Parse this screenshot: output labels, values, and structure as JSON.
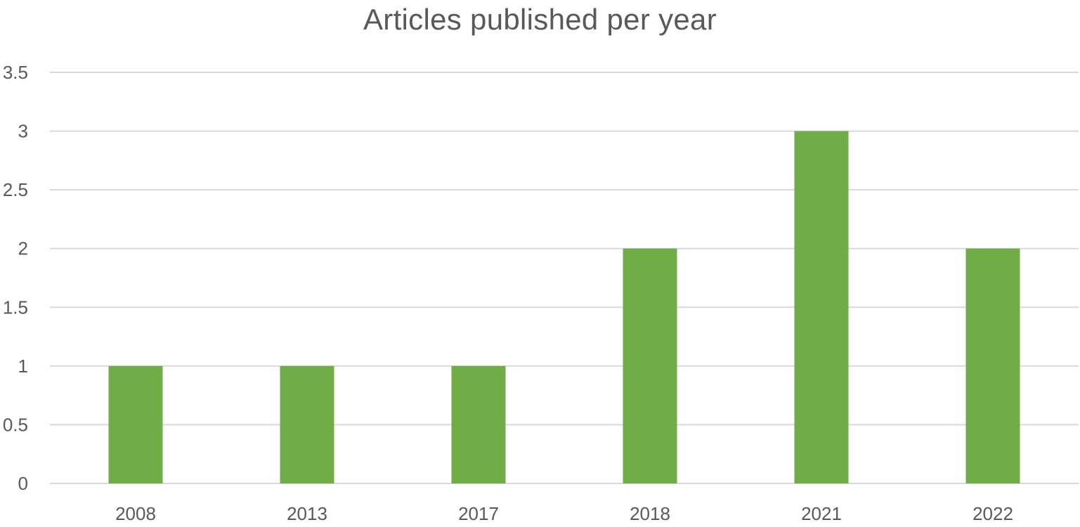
{
  "chart_data": {
    "type": "bar",
    "title": "Articles published per year",
    "xlabel": "",
    "ylabel": "",
    "categories": [
      "2008",
      "2013",
      "2017",
      "2018",
      "2021",
      "2022"
    ],
    "values": [
      1,
      1,
      1,
      2,
      3,
      2
    ],
    "ylim": [
      0,
      3.5
    ],
    "yticks": [
      "0",
      "0.5",
      "1",
      "1.5",
      "2",
      "2.5",
      "3",
      "3.5"
    ],
    "grid": true,
    "legend": "none",
    "colors": {
      "bar": "#70AD47",
      "grid": "#D9D9D9",
      "text": "#595959"
    }
  }
}
